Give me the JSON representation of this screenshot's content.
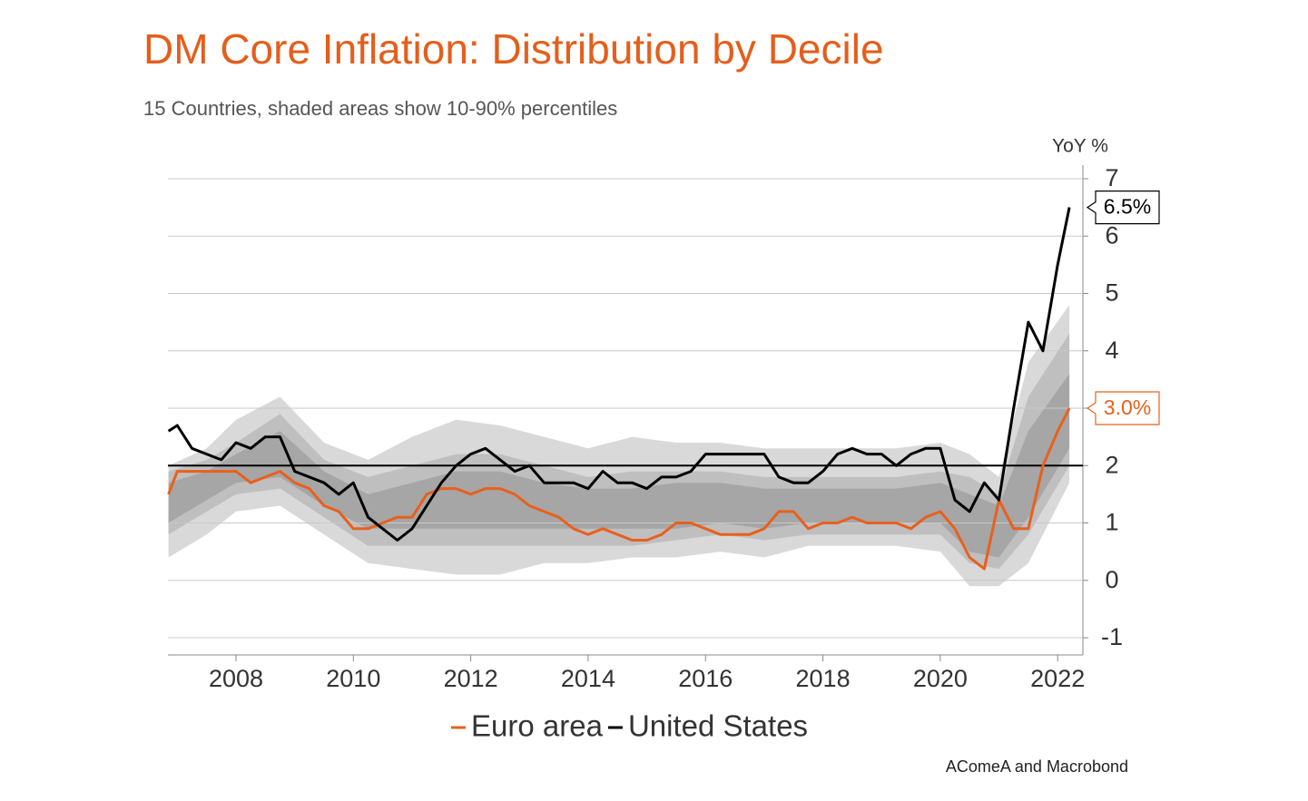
{
  "chart_data": {
    "type": "line",
    "title": "DM Core Inflation: Distribution by Decile",
    "subtitle": "15 Countries, shaded areas show 10-90% percentiles",
    "y_label": "YoY %",
    "source": "AComeA and Macrobond",
    "xlim": [
      2006.84,
      2022.43
    ],
    "ylim": [
      -1.3,
      7
    ],
    "xticks": [
      2008,
      2010,
      2012,
      2014,
      2016,
      2018,
      2020,
      2022
    ],
    "yticks": [
      -1,
      0,
      1,
      2,
      3,
      4,
      5,
      6,
      7
    ],
    "grid": true,
    "reference_line": 2,
    "band_x": [
      2006.85,
      2007.5,
      2008.0,
      2008.75,
      2009.5,
      2010.25,
      2011.0,
      2011.75,
      2012.5,
      2013.25,
      2014.0,
      2014.75,
      2015.5,
      2016.25,
      2017.0,
      2017.75,
      2018.5,
      2019.25,
      2020.0,
      2020.5,
      2021.0,
      2021.5,
      2022.2
    ],
    "bands": [
      {
        "color": "#d9d9d9",
        "lower": [
          0.4,
          0.8,
          1.2,
          1.3,
          0.8,
          0.3,
          0.2,
          0.1,
          0.1,
          0.3,
          0.3,
          0.4,
          0.4,
          0.5,
          0.4,
          0.6,
          0.6,
          0.6,
          0.5,
          -0.1,
          -0.1,
          0.3,
          1.7
        ],
        "upper": [
          2.0,
          2.3,
          2.8,
          3.2,
          2.4,
          2.1,
          2.5,
          2.8,
          2.7,
          2.5,
          2.3,
          2.5,
          2.4,
          2.4,
          2.3,
          2.3,
          2.3,
          2.3,
          2.4,
          2.2,
          1.8,
          3.8,
          4.8
        ]
      },
      {
        "color": "#bfbfbf",
        "lower": [
          0.8,
          1.2,
          1.5,
          1.6,
          1.1,
          0.6,
          0.6,
          0.6,
          0.6,
          0.6,
          0.6,
          0.6,
          0.7,
          0.8,
          0.7,
          0.8,
          0.8,
          0.8,
          0.8,
          0.3,
          0.2,
          0.8,
          2.0
        ],
        "upper": [
          1.9,
          2.1,
          2.4,
          2.9,
          2.1,
          1.8,
          2.0,
          2.2,
          2.2,
          2.0,
          1.8,
          1.9,
          1.9,
          1.9,
          1.8,
          1.8,
          1.8,
          1.8,
          1.9,
          1.8,
          1.5,
          3.2,
          4.3
        ]
      },
      {
        "color": "#a6a6a6",
        "lower": [
          1.0,
          1.4,
          1.7,
          1.8,
          1.3,
          0.9,
          0.9,
          0.9,
          0.9,
          0.9,
          0.9,
          0.9,
          0.9,
          1.0,
          0.9,
          1.0,
          1.0,
          1.0,
          1.0,
          0.5,
          0.4,
          1.1,
          2.3
        ],
        "upper": [
          1.7,
          1.9,
          2.2,
          2.6,
          1.9,
          1.5,
          1.7,
          1.9,
          1.9,
          1.7,
          1.6,
          1.6,
          1.7,
          1.7,
          1.6,
          1.6,
          1.6,
          1.6,
          1.7,
          1.5,
          1.3,
          2.6,
          3.6
        ]
      }
    ],
    "x": [
      2006.85,
      2007.0,
      2007.25,
      2007.5,
      2007.75,
      2008.0,
      2008.25,
      2008.5,
      2008.75,
      2009.0,
      2009.25,
      2009.5,
      2009.75,
      2010.0,
      2010.25,
      2010.5,
      2010.75,
      2011.0,
      2011.25,
      2011.5,
      2011.75,
      2012.0,
      2012.25,
      2012.5,
      2012.75,
      2013.0,
      2013.25,
      2013.5,
      2013.75,
      2014.0,
      2014.25,
      2014.5,
      2014.75,
      2015.0,
      2015.25,
      2015.5,
      2015.75,
      2016.0,
      2016.25,
      2016.5,
      2016.75,
      2017.0,
      2017.25,
      2017.5,
      2017.75,
      2018.0,
      2018.25,
      2018.5,
      2018.75,
      2019.0,
      2019.25,
      2019.5,
      2019.75,
      2020.0,
      2020.25,
      2020.5,
      2020.75,
      2021.0,
      2021.25,
      2021.5,
      2021.75,
      2022.0,
      2022.2
    ],
    "series": [
      {
        "name": "Euro area",
        "color": "#e8601c",
        "end_label": "3.0%",
        "values": [
          1.5,
          1.9,
          1.9,
          1.9,
          1.9,
          1.9,
          1.7,
          1.8,
          1.9,
          1.7,
          1.6,
          1.3,
          1.2,
          0.9,
          0.9,
          1.0,
          1.1,
          1.1,
          1.5,
          1.6,
          1.6,
          1.5,
          1.6,
          1.6,
          1.5,
          1.3,
          1.2,
          1.1,
          0.9,
          0.8,
          0.9,
          0.8,
          0.7,
          0.7,
          0.8,
          1.0,
          1.0,
          0.9,
          0.8,
          0.8,
          0.8,
          0.9,
          1.2,
          1.2,
          0.9,
          1.0,
          1.0,
          1.1,
          1.0,
          1.0,
          1.0,
          0.9,
          1.1,
          1.2,
          0.9,
          0.4,
          0.2,
          1.4,
          0.9,
          0.9,
          2.0,
          2.6,
          3.0
        ]
      },
      {
        "name": "United States",
        "color": "#000000",
        "end_label": "6.5%",
        "values": [
          2.6,
          2.7,
          2.3,
          2.2,
          2.1,
          2.4,
          2.3,
          2.5,
          2.5,
          1.9,
          1.8,
          1.7,
          1.5,
          1.7,
          1.1,
          0.9,
          0.7,
          0.9,
          1.3,
          1.7,
          2.0,
          2.2,
          2.3,
          2.1,
          1.9,
          2.0,
          1.7,
          1.7,
          1.7,
          1.6,
          1.9,
          1.7,
          1.7,
          1.6,
          1.8,
          1.8,
          1.9,
          2.2,
          2.2,
          2.2,
          2.2,
          2.2,
          1.8,
          1.7,
          1.7,
          1.9,
          2.2,
          2.3,
          2.2,
          2.2,
          2.0,
          2.2,
          2.3,
          2.3,
          1.4,
          1.2,
          1.7,
          1.4,
          3.0,
          4.5,
          4.0,
          5.5,
          6.5
        ]
      }
    ]
  }
}
